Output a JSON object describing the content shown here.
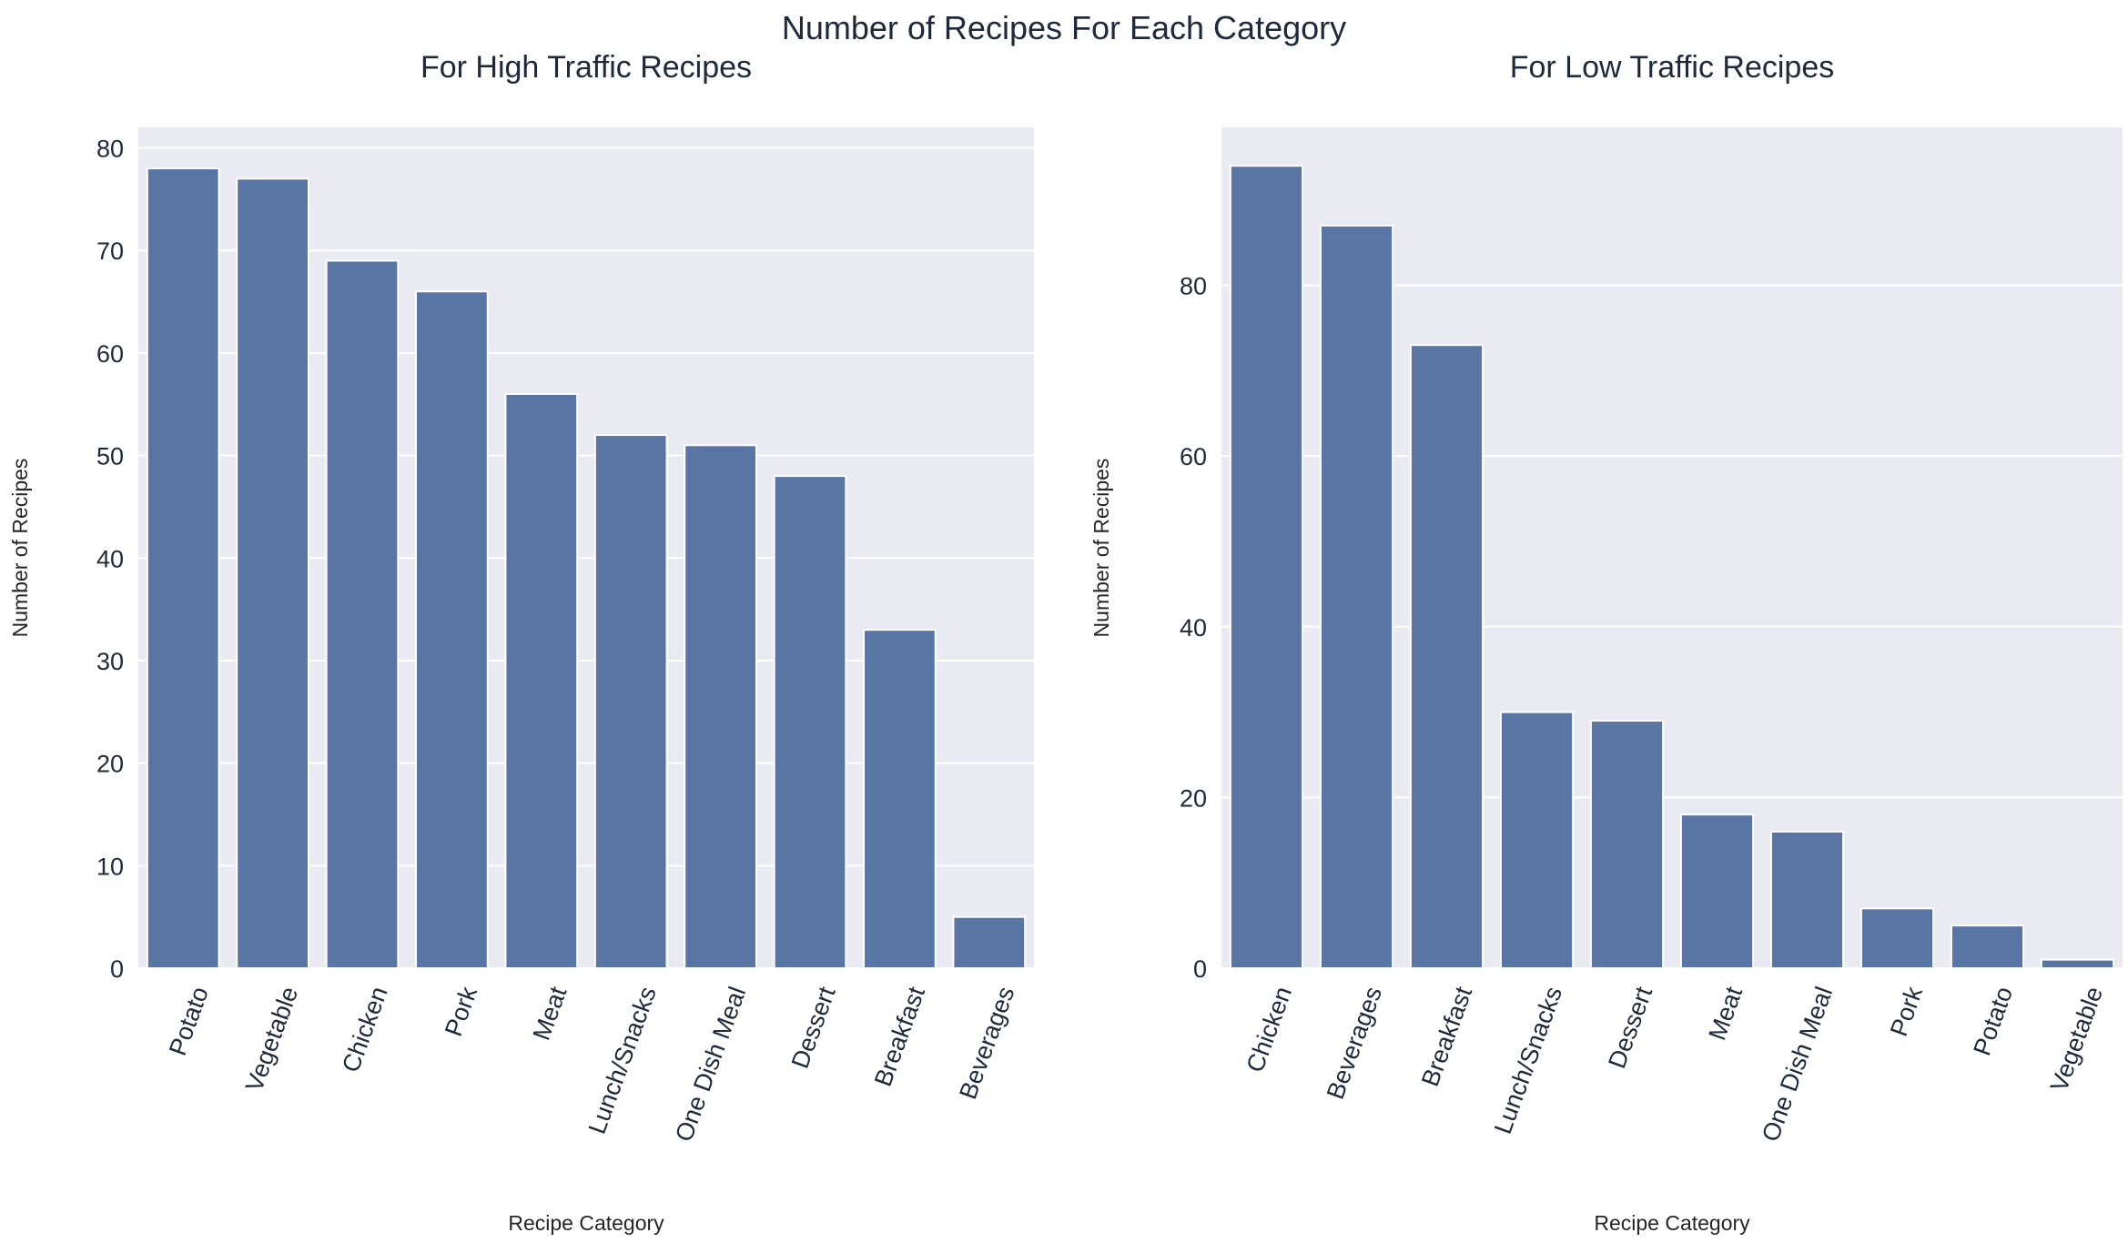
{
  "suptitle": "Number of Recipes For Each Category",
  "colors": {
    "bar": "#5975a4",
    "panel": "#eaeaf2",
    "grid": "#ffffff",
    "text": "#1e2a3a",
    "label": "#262626"
  },
  "chart_data": [
    {
      "type": "bar",
      "title": "For High Traffic Recipes",
      "xlabel": "Recipe Category",
      "ylabel": "Number of Recipes",
      "categories": [
        "Potato",
        "Vegetable",
        "Chicken",
        "Pork",
        "Meat",
        "Lunch/Snacks",
        "One Dish Meal",
        "Dessert",
        "Breakfast",
        "Beverages"
      ],
      "values": [
        78,
        77,
        69,
        66,
        56,
        52,
        51,
        48,
        33,
        5
      ],
      "ylim": [
        0,
        82
      ],
      "yticks": [
        0,
        10,
        20,
        30,
        40,
        50,
        60,
        70,
        80
      ],
      "grid": true,
      "xtick_rotation": 70
    },
    {
      "type": "bar",
      "title": "For Low Traffic Recipes",
      "xlabel": "Recipe Category",
      "ylabel": "Number of Recipes",
      "categories": [
        "Chicken",
        "Beverages",
        "Breakfast",
        "Lunch/Snacks",
        "Dessert",
        "Meat",
        "One Dish Meal",
        "Pork",
        "Potato",
        "Vegetable"
      ],
      "values": [
        94,
        87,
        73,
        30,
        29,
        18,
        16,
        7,
        5,
        1
      ],
      "ylim": [
        0,
        98.5
      ],
      "yticks": [
        0,
        20,
        40,
        60,
        80
      ],
      "grid": true,
      "xtick_rotation": 70
    }
  ]
}
